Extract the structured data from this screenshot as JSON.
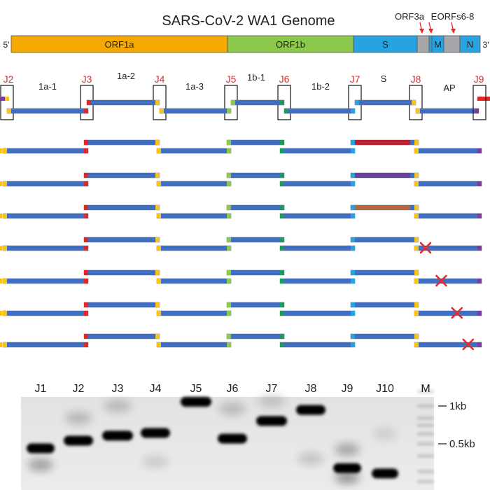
{
  "title": "SARS-CoV-2 WA1 Genome",
  "genome": {
    "five_prime": "5'",
    "three_prime": "3'",
    "segments": [
      {
        "label": "ORF1a",
        "color": "#f5a800"
      },
      {
        "label": "ORF1b",
        "color": "#8cc84b"
      },
      {
        "label": "S",
        "color": "#29a3e0"
      },
      {
        "label": "",
        "color": "#a5a7aa"
      },
      {
        "label": "",
        "color": "#29a3e0"
      },
      {
        "label": "M",
        "color": "#29a3e0"
      },
      {
        "label": "",
        "color": "#a5a7aa"
      },
      {
        "label": "N",
        "color": "#29a3e0"
      }
    ],
    "callouts": [
      {
        "label": "ORF3a"
      },
      {
        "label": "E"
      },
      {
        "label": "ORFs6-8"
      }
    ]
  },
  "junctions": [
    "J2",
    "J3",
    "J4",
    "J5",
    "J6",
    "J7",
    "J8",
    "J9"
  ],
  "fragments": [
    "1a-1",
    "1a-2",
    "1a-3",
    "1b-1",
    "1b-2",
    "S",
    "AP"
  ],
  "colors": {
    "junction_label": "#e8282b",
    "arrow": "#e8282b",
    "bar": "#3f6fc4",
    "bar_border": "#5b6e8f",
    "cap_yellow": "#f7c21a",
    "cap_red": "#e3262a",
    "cap_lightgreen": "#8cc84b",
    "cap_darkgreen": "#1d9a5c",
    "cap_lightblue": "#29a3e0",
    "cap_purple": "#7a3ea1",
    "x_mark": "#e8282b",
    "s_variant_1": "#b52233",
    "s_variant_2": "#6a3fa0",
    "s_variant_3": "#b8663a"
  },
  "constructs": [
    {
      "s_color": "#b52233",
      "x_at": null
    },
    {
      "s_color": "#6a3fa0",
      "x_at": null
    },
    {
      "s_color": "#b8663a",
      "x_at": null
    },
    {
      "s_color": null,
      "x_at": 0.1
    },
    {
      "s_color": null,
      "x_at": 0.38
    },
    {
      "s_color": null,
      "x_at": 0.66
    },
    {
      "s_color": null,
      "x_at": 0.86
    }
  ],
  "gel": {
    "lanes": [
      "J1",
      "J2",
      "J3",
      "J4",
      "J5",
      "J6",
      "J7",
      "J8",
      "J9",
      "J10",
      "M"
    ],
    "markers": [
      {
        "label": "1kb",
        "kb": 1.0
      },
      {
        "label": "0.5kb",
        "kb": 0.5
      }
    ]
  }
}
